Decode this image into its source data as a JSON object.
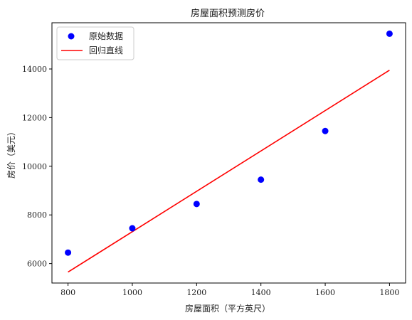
{
  "chart_data": {
    "type": "scatter",
    "title": "房屋面积预测房价",
    "xlabel": "房屋面积（平方英尺）",
    "ylabel": "房价（美元）",
    "xlim": [
      750,
      1850
    ],
    "ylim": [
      5200,
      15900
    ],
    "xticks": [
      800,
      1000,
      1200,
      1400,
      1600,
      1800
    ],
    "yticks": [
      6000,
      8000,
      10000,
      12000,
      14000
    ],
    "legend_position": "top-left",
    "grid": false,
    "series": [
      {
        "name": "原始数据",
        "kind": "scatter",
        "color": "#0000ff",
        "x": [
          800,
          1000,
          1200,
          1400,
          1600,
          1800
        ],
        "y": [
          6450,
          7450,
          8450,
          9450,
          11450,
          15450
        ]
      },
      {
        "name": "回归直线",
        "kind": "line",
        "color": "#ff0000",
        "x": [
          800,
          1800
        ],
        "y": [
          5650,
          13950
        ]
      }
    ]
  }
}
